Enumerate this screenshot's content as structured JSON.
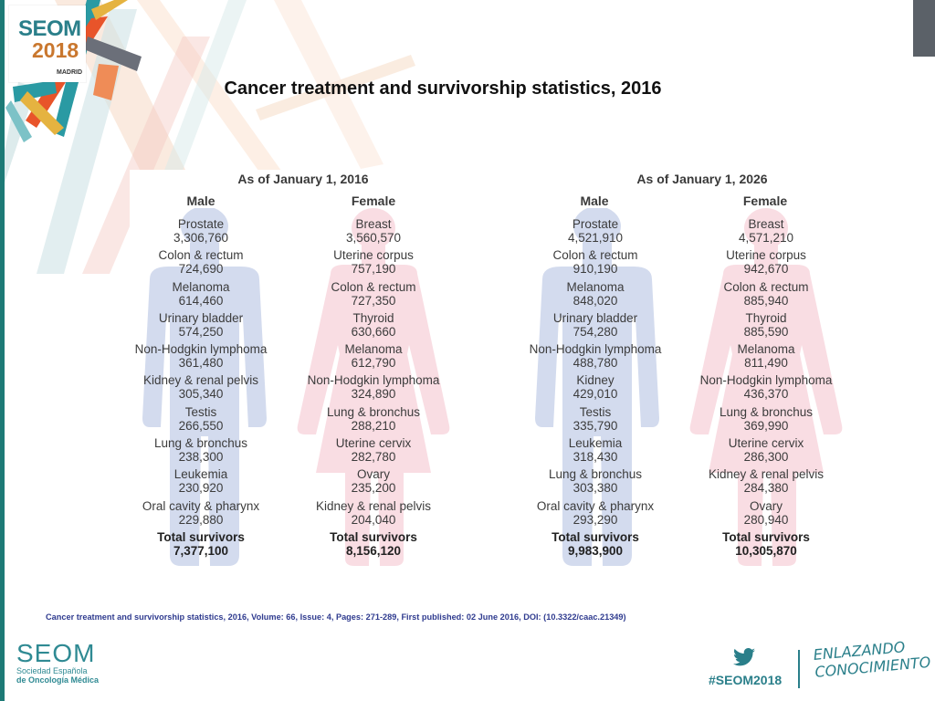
{
  "header": {
    "title": "Cancer treatment and survivorship statistics, 2016",
    "logo": {
      "brand": "SEOM",
      "year": "2018",
      "city": "MADRID"
    }
  },
  "panels": [
    {
      "heading": "As of January 1, 2016",
      "male": {
        "label": "Male",
        "items": [
          {
            "name": "Prostate",
            "value": "3,306,760"
          },
          {
            "name": "Colon & rectum",
            "value": "724,690"
          },
          {
            "name": "Melanoma",
            "value": "614,460"
          },
          {
            "name": "Urinary bladder",
            "value": "574,250"
          },
          {
            "name": "Non-Hodgkin lymphoma",
            "value": "361,480"
          },
          {
            "name": "Kidney & renal pelvis",
            "value": "305,340"
          },
          {
            "name": "Testis",
            "value": "266,550"
          },
          {
            "name": "Lung & bronchus",
            "value": "238,300"
          },
          {
            "name": "Leukemia",
            "value": "230,920"
          },
          {
            "name": "Oral cavity & pharynx",
            "value": "229,880"
          }
        ],
        "total_label": "Total survivors",
        "total_value": "7,377,100"
      },
      "female": {
        "label": "Female",
        "items": [
          {
            "name": "Breast",
            "value": "3,560,570"
          },
          {
            "name": "Uterine corpus",
            "value": "757,190"
          },
          {
            "name": "Colon & rectum",
            "value": "727,350"
          },
          {
            "name": "Thyroid",
            "value": "630,660"
          },
          {
            "name": "Melanoma",
            "value": "612,790"
          },
          {
            "name": "Non-Hodgkin lymphoma",
            "value": "324,890"
          },
          {
            "name": "Lung & bronchus",
            "value": "288,210"
          },
          {
            "name": "Uterine cervix",
            "value": "282,780"
          },
          {
            "name": "Ovary",
            "value": "235,200"
          },
          {
            "name": "Kidney & renal pelvis",
            "value": "204,040"
          }
        ],
        "total_label": "Total survivors",
        "total_value": "8,156,120"
      }
    },
    {
      "heading": "As of January 1, 2026",
      "male": {
        "label": "Male",
        "items": [
          {
            "name": "Prostate",
            "value": "4,521,910"
          },
          {
            "name": "Colon & rectum",
            "value": "910,190"
          },
          {
            "name": "Melanoma",
            "value": "848,020"
          },
          {
            "name": "Urinary bladder",
            "value": "754,280"
          },
          {
            "name": "Non-Hodgkin lymphoma",
            "value": "488,780"
          },
          {
            "name": "Kidney",
            "value": "429,010"
          },
          {
            "name": "Testis",
            "value": "335,790"
          },
          {
            "name": "Leukemia",
            "value": "318,430"
          },
          {
            "name": "Lung & bronchus",
            "value": "303,380"
          },
          {
            "name": "Oral cavity & pharynx",
            "value": "293,290"
          }
        ],
        "total_label": "Total survivors",
        "total_value": "9,983,900"
      },
      "female": {
        "label": "Female",
        "items": [
          {
            "name": "Breast",
            "value": "4,571,210"
          },
          {
            "name": "Uterine corpus",
            "value": "942,670"
          },
          {
            "name": "Colon & rectum",
            "value": "885,940"
          },
          {
            "name": "Thyroid",
            "value": "885,590"
          },
          {
            "name": "Melanoma",
            "value": "811,490"
          },
          {
            "name": "Non-Hodgkin lymphoma",
            "value": "436,370"
          },
          {
            "name": "Lung & bronchus",
            "value": "369,990"
          },
          {
            "name": "Uterine cervix",
            "value": "286,300"
          },
          {
            "name": "Kidney & renal pelvis",
            "value": "284,380"
          },
          {
            "name": "Ovary",
            "value": "280,940"
          }
        ],
        "total_label": "Total survivors",
        "total_value": "10,305,870"
      }
    }
  ],
  "citation": "Cancer treatment and survivorship statistics, 2016, Volume: 66, Issue: 4, Pages: 271-289, First published: 02 June 2016, DOI: (10.3322/caac.21349)",
  "footer": {
    "seom_word": "SEOM",
    "seom_line1": "Sociedad Española",
    "seom_line2": "de Oncología Médica",
    "hashtag": "#SEOM2018",
    "slogan_line1": "ENLAZANDO",
    "slogan_line2": "CONOCIMIENTO",
    "icons": [
      "twitter-icon"
    ]
  },
  "colors": {
    "male_figure": "#d3dbee",
    "female_figure": "#f9dde3",
    "accent": "#2a7f8a",
    "citation": "#2f3b8f"
  }
}
